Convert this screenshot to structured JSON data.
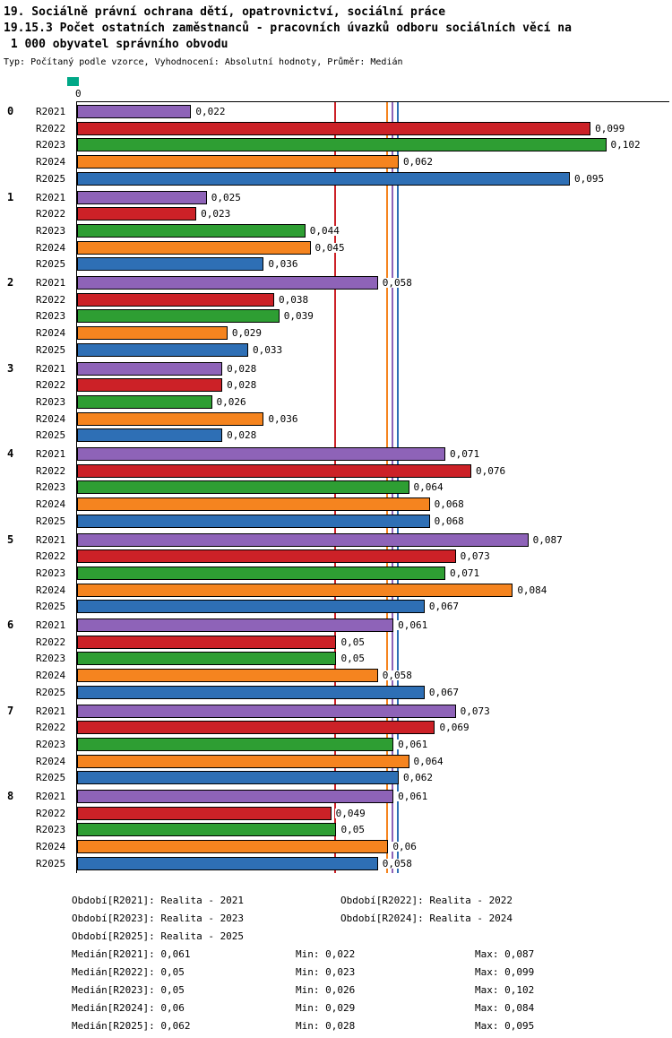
{
  "header": {
    "line1": "19. Sociálně právní ochrana dětí, opatrovnictví, sociální práce",
    "line2": "19.15.3 Počet ostatních zaměstnanců - pracovních úvazků odboru sociálních věcí na",
    "line3": " 1 000 obyvatel správního obvodu",
    "subtitle": "Typ: Počítaný podle vzorce, Vyhodnocení: Absolutní hodnoty, Průměr: Medián"
  },
  "marker_color": "#00A887",
  "chart_data": {
    "type": "bar",
    "orientation": "horizontal",
    "title": "19.15.3 Počet ostatních zaměstnanců - pracovních úvazků odboru sociálních věcí na 1 000 obyvatel správního obvodu",
    "xlabel": "",
    "ylabel": "",
    "axis_zero_label": "0",
    "xlim": [
      0,
      0.114
    ],
    "grid": false,
    "legend_position": "bottom",
    "categories": [
      "0",
      "1",
      "2",
      "3",
      "4",
      "5",
      "6",
      "7",
      "8"
    ],
    "series": [
      {
        "name": "R2021",
        "color": "#8E63B8",
        "median": 0.061,
        "values": [
          0.022,
          0.025,
          0.058,
          0.028,
          0.071,
          0.087,
          0.061,
          0.073,
          0.061
        ],
        "labels": [
          "0,022",
          "0,025",
          "0,058",
          "0,028",
          "0,071",
          "0,087",
          "0,061",
          "0,073",
          "0,061"
        ]
      },
      {
        "name": "R2022",
        "color": "#CC2127",
        "median": 0.05,
        "values": [
          0.099,
          0.023,
          0.038,
          0.028,
          0.076,
          0.073,
          0.05,
          0.069,
          0.049
        ],
        "labels": [
          "0,099",
          "0,023",
          "0,038",
          "0,028",
          "0,076",
          "0,073",
          "0,05",
          "0,069",
          "0,049"
        ]
      },
      {
        "name": "R2023",
        "color": "#2E9E33",
        "median": 0.05,
        "values": [
          0.102,
          0.044,
          0.039,
          0.026,
          0.064,
          0.071,
          0.05,
          0.061,
          0.05
        ],
        "labels": [
          "0,102",
          "0,044",
          "0,039",
          "0,026",
          "0,064",
          "0,071",
          "0,05",
          "0,061",
          "0,05"
        ]
      },
      {
        "name": "R2024",
        "color": "#F5841F",
        "median": 0.06,
        "values": [
          0.062,
          0.045,
          0.029,
          0.036,
          0.068,
          0.084,
          0.058,
          0.064,
          0.06
        ],
        "labels": [
          "0,062",
          "0,045",
          "0,029",
          "0,036",
          "0,068",
          "0,084",
          "0,058",
          "0,064",
          "0,06"
        ]
      },
      {
        "name": "R2025",
        "color": "#2E6FB5",
        "median": 0.062,
        "values": [
          0.095,
          0.036,
          0.033,
          0.028,
          0.068,
          0.067,
          0.067,
          0.062,
          0.058
        ],
        "labels": [
          "0,095",
          "0,036",
          "0,033",
          "0,028",
          "0,068",
          "0,067",
          "0,067",
          "0,062",
          "0,058"
        ]
      }
    ]
  },
  "legend": [
    "Období[R2021]: Realita - 2021",
    "Období[R2022]: Realita - 2022",
    "Období[R2023]: Realita - 2023",
    "Období[R2024]: Realita - 2024",
    "Období[R2025]: Realita - 2025"
  ],
  "stats": [
    {
      "median": "Medián[R2021]: 0,061",
      "min": "Min: 0,022",
      "max": "Max: 0,087"
    },
    {
      "median": "Medián[R2022]: 0,05",
      "min": "Min: 0,023",
      "max": "Max: 0,099"
    },
    {
      "median": "Medián[R2023]: 0,05",
      "min": "Min: 0,026",
      "max": "Max: 0,102"
    },
    {
      "median": "Medián[R2024]: 0,06",
      "min": "Min: 0,029",
      "max": "Max: 0,084"
    },
    {
      "median": "Medián[R2025]: 0,062",
      "min": "Min: 0,028",
      "max": "Max: 0,095"
    }
  ]
}
